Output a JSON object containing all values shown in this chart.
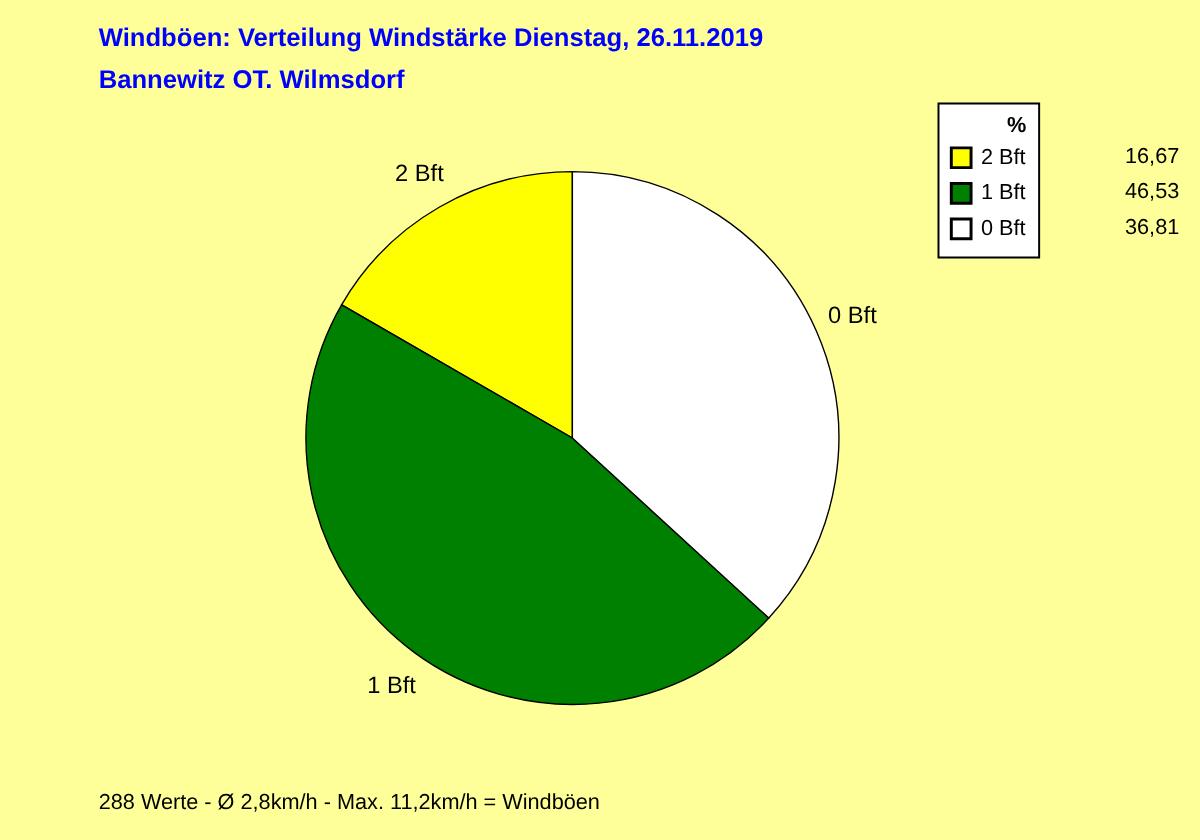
{
  "chart_data": {
    "type": "pie",
    "title": "Windböen: Verteilung Windstärke  Dienstag, 26.11.2019",
    "subtitle": "Bannewitz OT. Wilmsdorf",
    "legend_title": "%",
    "legend": "top right",
    "categories": [
      "2 Bft",
      "1 Bft",
      "0 Bft"
    ],
    "values": [
      16.67,
      46.53,
      36.81
    ],
    "value_labels": [
      "16,67",
      "46,53",
      "36,81"
    ],
    "colors": [
      "#ffff00",
      "#008000",
      "#ffffff"
    ],
    "annotations": [
      "288 Werte   -   Ø 2,8km/h  -  Max. 11,2km/h = Windböen"
    ]
  }
}
